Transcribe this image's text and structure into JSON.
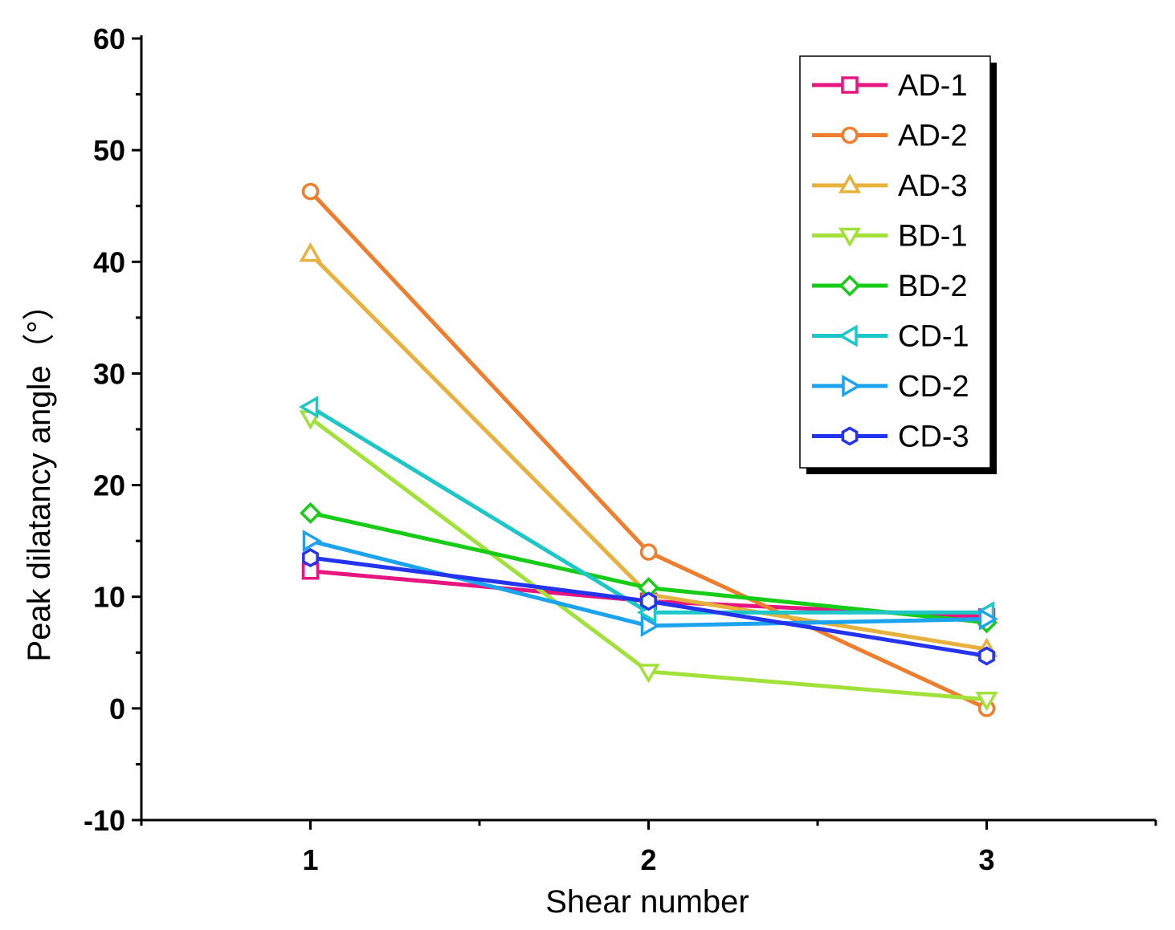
{
  "chart_data": {
    "type": "line",
    "title": "",
    "xlabel": "Shear number",
    "ylabel": "Peak dilatancy angle（°）",
    "x": [
      1,
      2,
      3
    ],
    "xlim": [
      0.5,
      3.5
    ],
    "ylim": [
      -10,
      60
    ],
    "x_ticks": [
      1,
      2,
      3
    ],
    "x_tick_labels": [
      "1",
      "2",
      "3"
    ],
    "y_ticks": [
      -10,
      0,
      10,
      20,
      30,
      40,
      50,
      60
    ],
    "y_tick_labels": [
      "-10",
      "0",
      "10",
      "20",
      "30",
      "40",
      "50",
      "60"
    ],
    "legend_position": "top-right",
    "series": [
      {
        "name": "AD-1",
        "values": [
          12.3,
          9.6,
          8.2
        ],
        "color": "#e6157f",
        "marker": "square"
      },
      {
        "name": "AD-2",
        "values": [
          46.3,
          14.0,
          0.0
        ],
        "color": "#ef7d2e",
        "marker": "circle"
      },
      {
        "name": "AD-3",
        "values": [
          40.7,
          10.2,
          5.3
        ],
        "color": "#e8b03c",
        "marker": "triangle-up"
      },
      {
        "name": "BD-1",
        "values": [
          26.0,
          3.3,
          0.8
        ],
        "color": "#a2e13a",
        "marker": "triangle-down"
      },
      {
        "name": "BD-2",
        "values": [
          17.5,
          10.8,
          7.7
        ],
        "color": "#16cc16",
        "marker": "diamond"
      },
      {
        "name": "CD-1",
        "values": [
          27.0,
          8.6,
          8.6
        ],
        "color": "#1ec7c7",
        "marker": "triangle-left"
      },
      {
        "name": "CD-2",
        "values": [
          15.0,
          7.4,
          8.0
        ],
        "color": "#1ca3ee",
        "marker": "triangle-right"
      },
      {
        "name": "CD-3",
        "values": [
          13.5,
          9.6,
          4.7
        ],
        "color": "#2433ee",
        "marker": "hexagon"
      }
    ]
  }
}
